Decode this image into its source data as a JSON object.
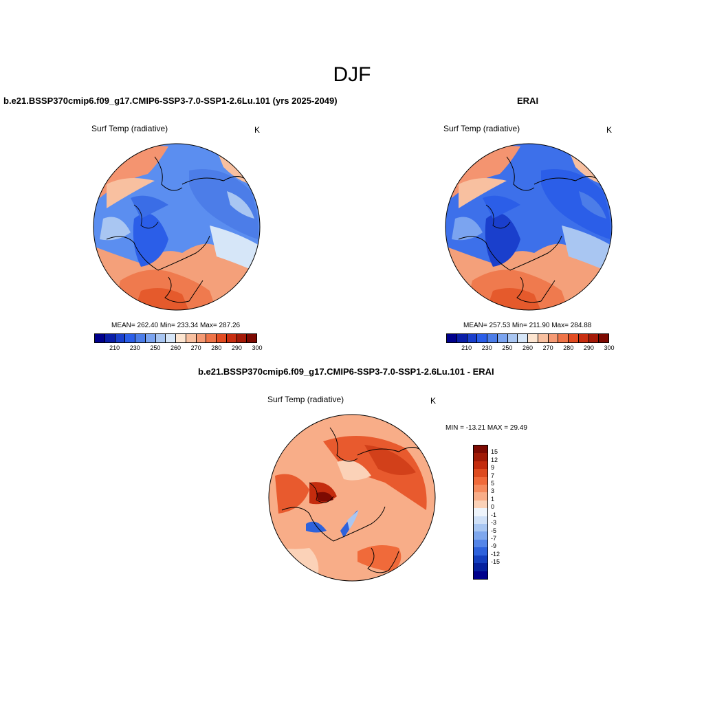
{
  "figure": {
    "title": "DJF"
  },
  "panels": {
    "model": {
      "title": "b.e21.BSSP370cmip6.f09_g17.CMIP6-SSP3-7.0-SSP1-2.6Lu.101 (yrs 2025-2049)",
      "variable": "Surf Temp (radiative)",
      "unit": "K",
      "stats": "MEAN= 262.40  Min= 233.34  Max= 287.26",
      "mean": 262.4,
      "min": 233.34,
      "max": 287.26
    },
    "obs": {
      "title": "ERAI",
      "variable": "Surf Temp (radiative)",
      "unit": "K",
      "stats": "MEAN= 257.53  Min= 211.90  Max= 284.88",
      "mean": 257.53,
      "min": 211.9,
      "max": 284.88
    },
    "diff": {
      "title": "b.e21.BSSP370cmip6.f09_g17.CMIP6-SSP3-7.0-SSP1-2.6Lu.101 - ERAI",
      "variable": "Surf Temp (radiative)",
      "unit": "K",
      "stats": "MIN = -13.21 MAX =  29.49",
      "min": -13.21,
      "max": 29.49
    }
  },
  "colorbar_abs": {
    "colors": [
      "#00008b",
      "#0a1ea8",
      "#1a3fcc",
      "#2b5ee8",
      "#4c7de8",
      "#7ba4f0",
      "#a9c6f2",
      "#d6e6f8",
      "#fde5d0",
      "#f8c0a0",
      "#f59a74",
      "#ef7448",
      "#e24c22",
      "#c82e10",
      "#a51a08",
      "#7d0a02"
    ],
    "tick_labels": [
      "210",
      "230",
      "250",
      "260",
      "270",
      "280",
      "290",
      "300"
    ]
  },
  "colorbar_diff": {
    "colors": [
      "#7d0a02",
      "#a01a06",
      "#c42c0e",
      "#de4b1f",
      "#f06a3a",
      "#f58a5d",
      "#f8ad88",
      "#fbd2b8",
      "#eef4fb",
      "#cfe0f7",
      "#a8c6f2",
      "#7ea7ee",
      "#5485e8",
      "#2e62dc",
      "#143fbf",
      "#06219e",
      "#00008b"
    ],
    "tick_labels": [
      "15",
      "12",
      "9",
      "7",
      "5",
      "3",
      "1",
      "0",
      "-1",
      "-3",
      "-5",
      "-7",
      "-9",
      "-12",
      "-15"
    ]
  }
}
